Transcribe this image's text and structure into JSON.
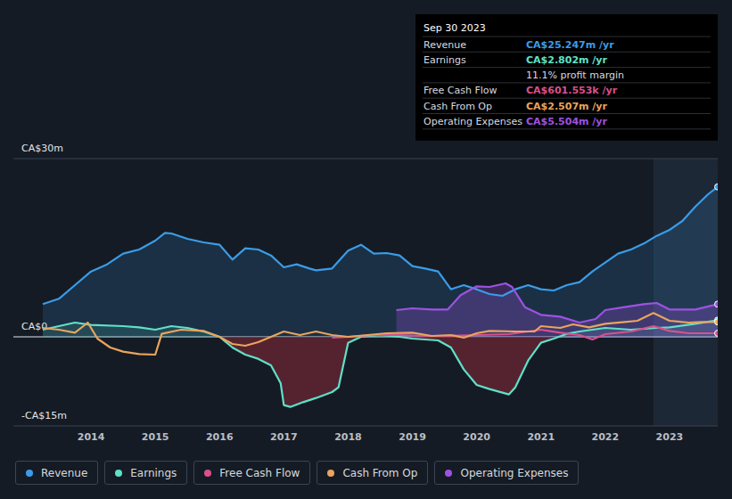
{
  "chart_data": {
    "type": "line",
    "xlim": [
      2013.25,
      2023.75
    ],
    "xticks": [
      2014,
      2015,
      2016,
      2017,
      2018,
      2019,
      2020,
      2021,
      2022,
      2023
    ],
    "ylim": [
      -15,
      30
    ],
    "yticks": [
      {
        "value": -15,
        "label": "-CA$15m"
      },
      {
        "value": 0,
        "label": "CA$0"
      },
      {
        "value": 30,
        "label": "CA$30m"
      }
    ],
    "grid": true,
    "legend": "bottom-left",
    "series": [
      {
        "name": "Revenue",
        "color": "#3a9ce8",
        "type": "area",
        "x": [
          2013.25,
          2013.5,
          2013.75,
          2014.0,
          2014.25,
          2014.5,
          2014.75,
          2015.0,
          2015.15,
          2015.25,
          2015.5,
          2015.75,
          2016.0,
          2016.2,
          2016.4,
          2016.6,
          2016.8,
          2017.0,
          2017.2,
          2017.4,
          2017.5,
          2017.75,
          2018.0,
          2018.2,
          2018.4,
          2018.6,
          2018.8,
          2019.0,
          2019.2,
          2019.4,
          2019.6,
          2019.8,
          2020.0,
          2020.2,
          2020.4,
          2020.6,
          2020.8,
          2021.0,
          2021.2,
          2021.4,
          2021.6,
          2021.8,
          2022.0,
          2022.2,
          2022.4,
          2022.6,
          2022.8,
          2023.0,
          2023.2,
          2023.4,
          2023.6,
          2023.75
        ],
        "values": [
          5.5,
          6.4,
          8.7,
          11,
          12.2,
          14,
          14.7,
          16.2,
          17.5,
          17.4,
          16.5,
          15.9,
          15.5,
          13,
          14.9,
          14.7,
          13.7,
          11.7,
          12.2,
          11.5,
          11.2,
          11.5,
          14.5,
          15.5,
          14,
          14.1,
          13.7,
          11.9,
          11.5,
          11,
          8,
          8.7,
          8,
          7.2,
          6.9,
          8,
          8.7,
          8,
          7.8,
          8.7,
          9.2,
          11,
          12.5,
          14,
          14.7,
          15.7,
          17,
          18,
          19.5,
          21.9,
          24,
          25.247
        ]
      },
      {
        "name": "Earnings",
        "color": "#5fe0c8",
        "type": "area",
        "x": [
          2013.25,
          2013.5,
          2013.75,
          2014.0,
          2014.5,
          2014.75,
          2015.0,
          2015.25,
          2015.5,
          2015.75,
          2016.0,
          2016.2,
          2016.4,
          2016.6,
          2016.8,
          2016.95,
          2017.0,
          2017.1,
          2017.3,
          2017.5,
          2017.75,
          2017.85,
          2018.0,
          2018.2,
          2018.5,
          2018.8,
          2019.0,
          2019.4,
          2019.6,
          2019.8,
          2020.0,
          2020.2,
          2020.5,
          2020.6,
          2020.8,
          2021.0,
          2021.2,
          2021.4,
          2021.6,
          2021.8,
          2022.0,
          2022.4,
          2022.8,
          2023.0,
          2023.4,
          2023.75
        ],
        "values": [
          1.2,
          1.8,
          2.4,
          2,
          1.8,
          1.6,
          1.2,
          1.8,
          1.5,
          0.9,
          0,
          -1.8,
          -3,
          -3.7,
          -4.8,
          -7.8,
          -11.5,
          -11.8,
          -11,
          -10.3,
          -9.3,
          -8.5,
          -1,
          0,
          0.3,
          0,
          -0.3,
          -0.6,
          -1.8,
          -5.5,
          -8.1,
          -8.8,
          -9.7,
          -8.5,
          -4,
          -1,
          -0.3,
          0.5,
          0.9,
          1.2,
          1.5,
          1.2,
          1.5,
          1.6,
          2.2,
          2.802
        ]
      },
      {
        "name": "Free Cash Flow",
        "color": "#d9508e",
        "type": "line",
        "x": [
          2017.75,
          2018.0,
          2018.4,
          2018.8,
          2019.2,
          2019.6,
          2020.0,
          2020.5,
          2021.0,
          2021.3,
          2021.6,
          2021.8,
          2022.0,
          2022.4,
          2022.75,
          2023.0,
          2023.3,
          2023.75
        ],
        "values": [
          -0.15,
          0,
          0.3,
          0.3,
          0.15,
          0.15,
          0.3,
          0.45,
          1.2,
          0.7,
          0.3,
          -0.45,
          0.45,
          0.9,
          1.8,
          1,
          0.6,
          0.601553
        ]
      },
      {
        "name": "Cash From Op",
        "color": "#e9a55c",
        "type": "line",
        "x": [
          2013.25,
          2013.5,
          2013.75,
          2013.95,
          2014.1,
          2014.3,
          2014.5,
          2014.75,
          2015.0,
          2015.1,
          2015.4,
          2015.75,
          2016.0,
          2016.2,
          2016.4,
          2016.6,
          2016.8,
          2017.0,
          2017.25,
          2017.5,
          2017.75,
          2018.0,
          2018.3,
          2018.6,
          2019.0,
          2019.3,
          2019.6,
          2019.8,
          2020.0,
          2020.2,
          2020.6,
          2020.9,
          2021.0,
          2021.3,
          2021.5,
          2021.75,
          2022.0,
          2022.3,
          2022.5,
          2022.75,
          2023.0,
          2023.3,
          2023.5,
          2023.75
        ],
        "values": [
          1.5,
          1.2,
          0.7,
          2.4,
          -0.3,
          -1.8,
          -2.5,
          -2.9,
          -3,
          0.5,
          1.2,
          1,
          0,
          -1.2,
          -1.5,
          -0.9,
          0,
          0.9,
          0.3,
          0.9,
          0.3,
          0,
          0.3,
          0.6,
          0.7,
          0.15,
          0.3,
          -0.15,
          0.6,
          1,
          0.9,
          0.9,
          1.8,
          1.5,
          2.1,
          1.6,
          2.2,
          2.5,
          2.7,
          4,
          2.7,
          2.4,
          2.5,
          2.507
        ]
      },
      {
        "name": "Operating Expenses",
        "color": "#9e52e2",
        "type": "area",
        "x": [
          2018.75,
          2019.0,
          2019.3,
          2019.55,
          2019.75,
          2020.0,
          2020.2,
          2020.45,
          2020.55,
          2020.75,
          2021.0,
          2021.3,
          2021.6,
          2021.85,
          2022.0,
          2022.3,
          2022.6,
          2022.8,
          2023.0,
          2023.4,
          2023.75
        ],
        "values": [
          4.5,
          4.8,
          4.6,
          4.6,
          7,
          8.5,
          8.4,
          9,
          8.4,
          5,
          3.7,
          3.4,
          2.4,
          3,
          4.5,
          5,
          5.5,
          5.7,
          4.6,
          4.6,
          5.504
        ]
      }
    ],
    "tooltip": {
      "date": "Sep 30 2023",
      "rows": [
        {
          "label": "Revenue",
          "value": "CA$25.247m /yr"
        },
        {
          "label": "Earnings",
          "value": "CA$2.802m /yr"
        },
        {
          "value": "11.1% profit margin"
        },
        {
          "label": "Free Cash Flow",
          "value": "CA$601.553k /yr"
        },
        {
          "label": "Cash From Op",
          "value": "CA$2.507m /yr"
        },
        {
          "label": "Operating Expenses",
          "value": "CA$5.504m /yr"
        }
      ]
    }
  }
}
